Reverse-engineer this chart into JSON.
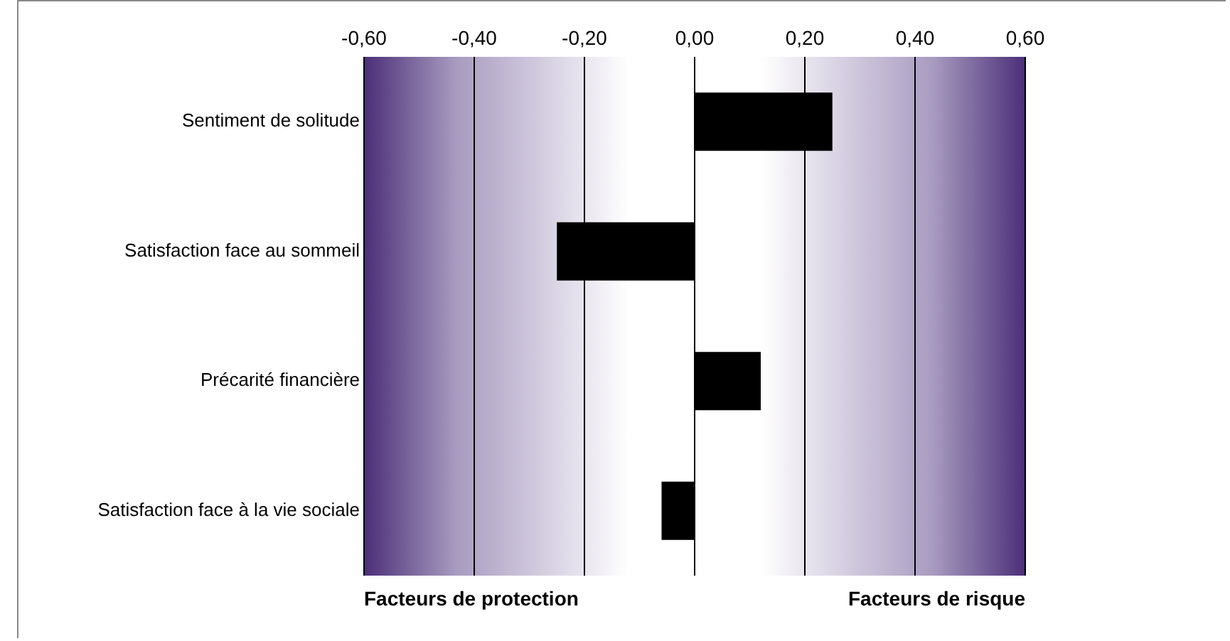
{
  "chart_data": {
    "type": "bar",
    "orientation": "horizontal",
    "categories": [
      "Sentiment de solitude",
      "Satisfaction face au sommeil",
      "Précarité financière",
      "Satisfaction face à la vie sociale"
    ],
    "values": [
      0.25,
      -0.25,
      0.12,
      -0.06
    ],
    "color": "#000000",
    "xlim": [
      -0.6,
      0.6
    ],
    "xticks": [
      {
        "value": -0.6,
        "label": "-0,60"
      },
      {
        "value": -0.4,
        "label": "-0,40"
      },
      {
        "value": -0.2,
        "label": "-0,20"
      },
      {
        "value": 0,
        "label": "0,00"
      },
      {
        "value": 0.2,
        "label": "0,20"
      },
      {
        "value": 0.4,
        "label": "0,40"
      },
      {
        "value": 0.6,
        "label": "0,60"
      }
    ],
    "grid": "x",
    "legend": false,
    "annotations": [
      "Facteurs de protection",
      "Facteurs de risque"
    ]
  }
}
